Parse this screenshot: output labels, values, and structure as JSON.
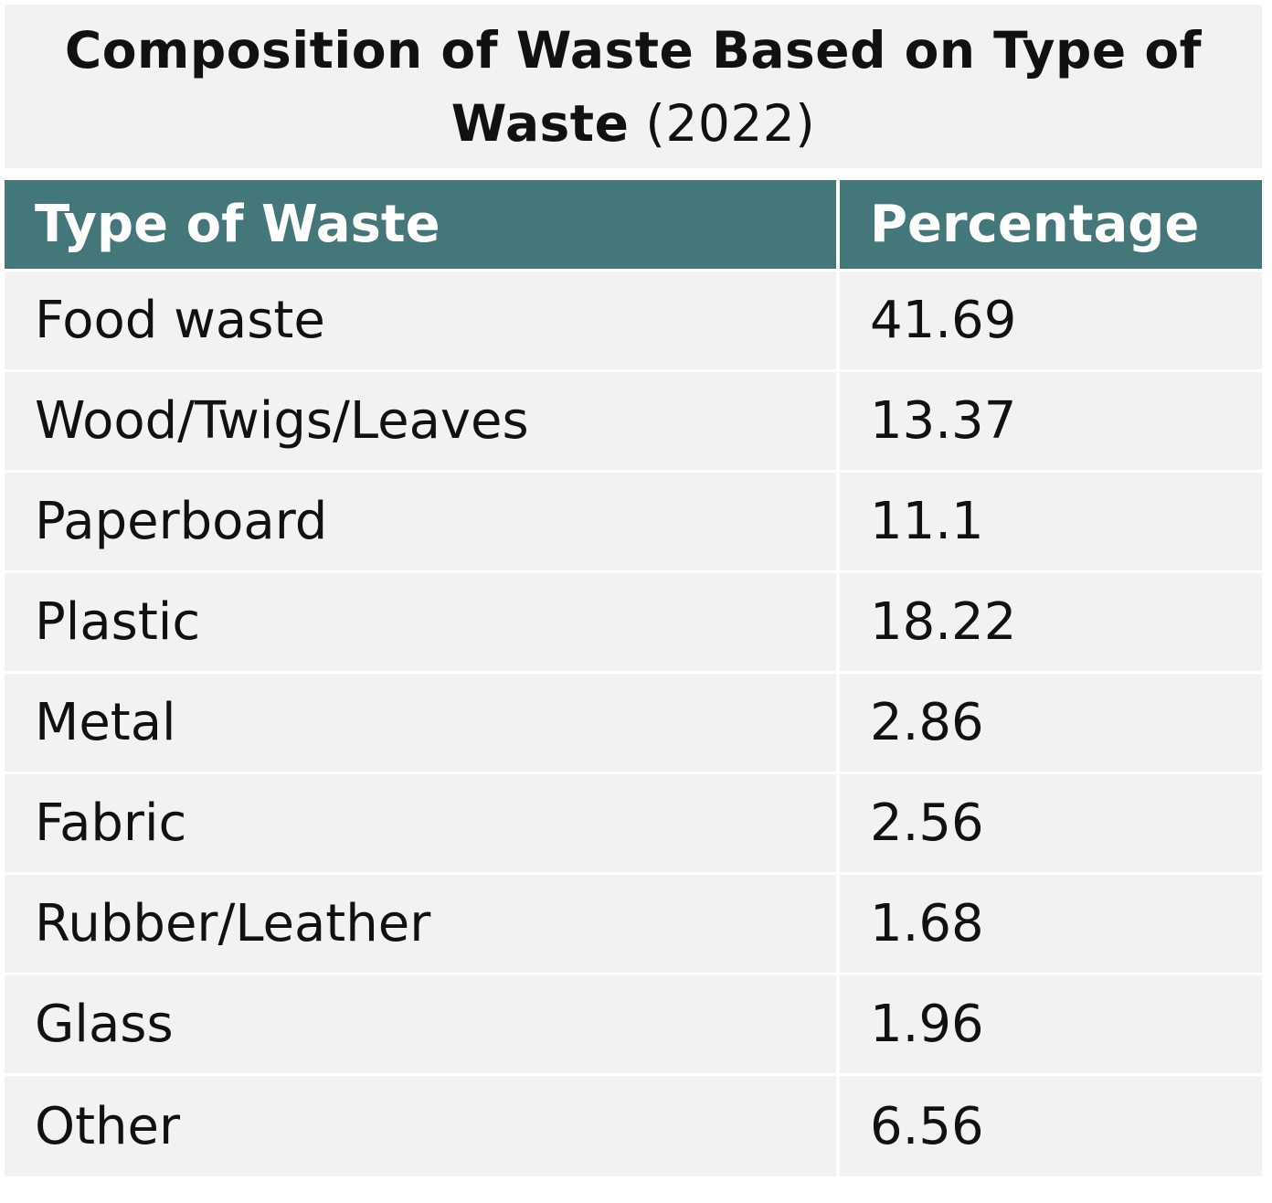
{
  "chart_data": {
    "type": "table",
    "title": "Composition of Waste Based on Type of Waste",
    "subtitle": "(2022)",
    "columns": [
      "Type of Waste",
      "Percentage"
    ],
    "rows": [
      {
        "type": "Food waste",
        "percentage": "41.69"
      },
      {
        "type": "Wood/Twigs/Leaves",
        "percentage": "13.37"
      },
      {
        "type": "Paperboard",
        "percentage": "11.1"
      },
      {
        "type": "Plastic",
        "percentage": "18.22"
      },
      {
        "type": "Metal",
        "percentage": "2.86"
      },
      {
        "type": "Fabric",
        "percentage": "2.56"
      },
      {
        "type": "Rubber/Leather",
        "percentage": "1.68"
      },
      {
        "type": "Glass",
        "percentage": "1.96"
      },
      {
        "type": "Other",
        "percentage": "6.56"
      }
    ]
  },
  "colors": {
    "header_background": "#447779",
    "cell_background": "#f2f2f2",
    "header_text": "#ffffff",
    "body_text": "#111111"
  }
}
